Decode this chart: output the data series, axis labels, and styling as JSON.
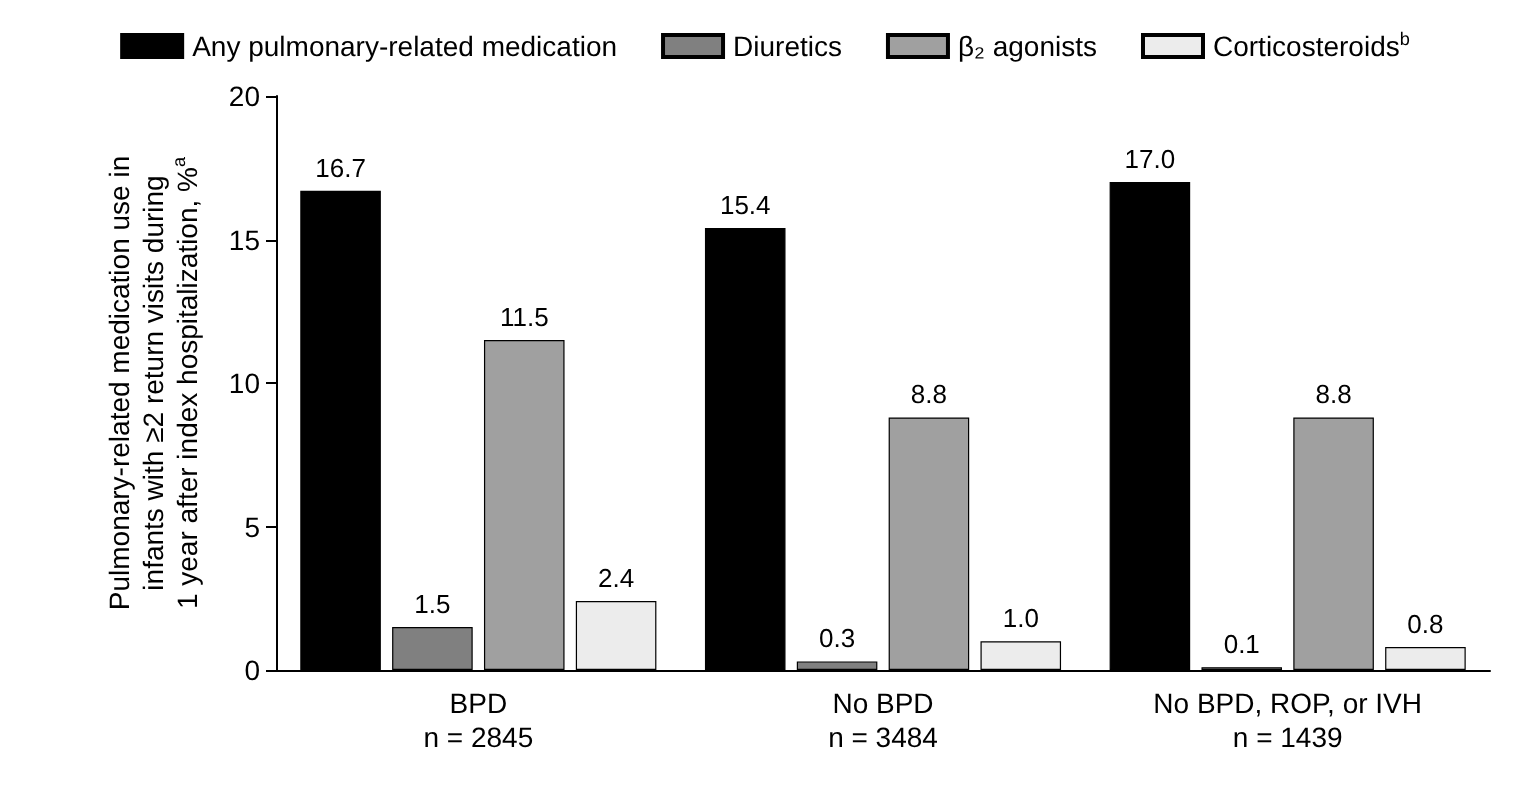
{
  "chart_data": {
    "type": "bar",
    "categories": [
      "BPD\nn = 2845",
      "No BPD\nn = 3484",
      "No BPD, ROP, or IVH\nn = 1439"
    ],
    "ylabel": "Pulmonary-related medication use in\ninfants with ≥2 return visits during\n1 year after index hospitalization, %$^{a}$",
    "series": [
      {
        "name": "Any pulmonary-related medication",
        "color": "#000000",
        "values": [
          16.7,
          15.4,
          17.0
        ],
        "value_labels": [
          "16.7",
          "15.4",
          "17.0"
        ]
      },
      {
        "name": "Diuretics",
        "color": "#808080",
        "values": [
          1.5,
          0.3,
          0.1
        ],
        "value_labels": [
          "1.5",
          "0.3",
          "0.1"
        ]
      },
      {
        "name": "β₂ agonists",
        "color": "#a0a0a0",
        "values": [
          11.5,
          8.8,
          8.8
        ],
        "value_labels": [
          "11.5",
          "8.8",
          "8.8"
        ]
      },
      {
        "name": "Corticosteroids$^{b}$",
        "color": "#ececec",
        "values": [
          2.4,
          1.0,
          0.8
        ],
        "value_labels": [
          "2.4",
          "1.0",
          "0.8"
        ]
      }
    ],
    "ylim": [
      0,
      20
    ],
    "yticks": [
      0,
      5,
      10,
      15,
      20
    ],
    "legend": "top",
    "grid": false
  }
}
